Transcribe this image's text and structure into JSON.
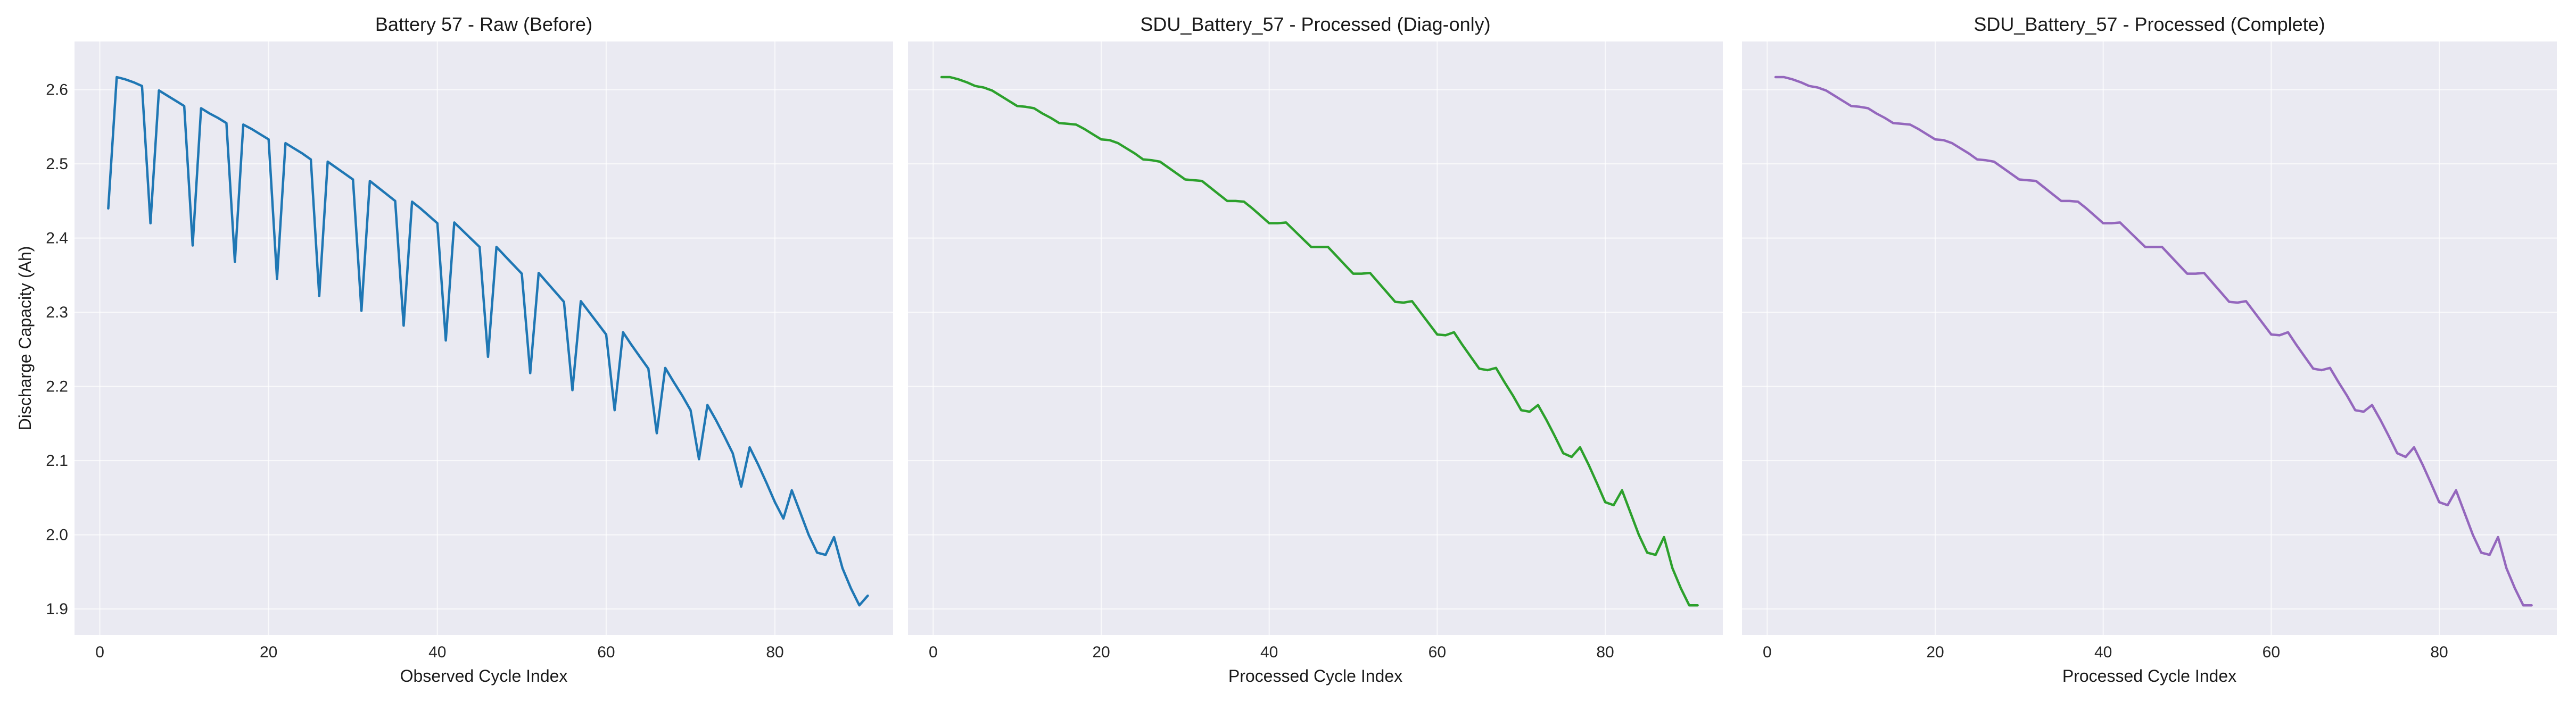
{
  "chart_data": [
    {
      "type": "line",
      "title": "Battery 57 - Raw (Before)",
      "xlabel": "Observed Cycle Index",
      "ylabel": "Discharge Capacity (Ah)",
      "xlim": [
        -3,
        94
      ],
      "ylim": [
        1.865,
        2.665
      ],
      "xticks": [
        0,
        20,
        40,
        60,
        80
      ],
      "yticks": [
        1.9,
        2.0,
        2.1,
        2.2,
        2.3,
        2.4,
        2.5,
        2.6
      ],
      "grid": true,
      "color": "#1f77b4",
      "series": [
        {
          "x": [
            1,
            2,
            3,
            4,
            5,
            6,
            7,
            8,
            9,
            10,
            11,
            12,
            13,
            14,
            15,
            16,
            17,
            18,
            19,
            20,
            21,
            22,
            23,
            24,
            25,
            26,
            27,
            28,
            29,
            30,
            31,
            32,
            33,
            34,
            35,
            36,
            37,
            38,
            39,
            40,
            41,
            42,
            43,
            44,
            45,
            46,
            47,
            48,
            49,
            50,
            51,
            52,
            53,
            54,
            55,
            56,
            57,
            58,
            59,
            60,
            61,
            62,
            63,
            64,
            65,
            66,
            67,
            68,
            69,
            70,
            71,
            72,
            73,
            74,
            75,
            76,
            77,
            78,
            79,
            80,
            81,
            82,
            83,
            84,
            85,
            86,
            87,
            88,
            89,
            90,
            91
          ],
          "y": [
            2.44,
            2.617,
            2.614,
            2.61,
            2.605,
            2.42,
            2.599,
            2.592,
            2.585,
            2.578,
            2.39,
            2.575,
            2.568,
            2.562,
            2.555,
            2.368,
            2.553,
            2.547,
            2.54,
            2.533,
            2.345,
            2.528,
            2.521,
            2.514,
            2.506,
            2.322,
            2.503,
            2.495,
            2.487,
            2.479,
            2.302,
            2.477,
            2.468,
            2.459,
            2.45,
            2.282,
            2.449,
            2.44,
            2.43,
            2.42,
            2.262,
            2.421,
            2.41,
            2.399,
            2.388,
            2.24,
            2.388,
            2.376,
            2.364,
            2.352,
            2.218,
            2.353,
            2.34,
            2.327,
            2.314,
            2.195,
            2.315,
            2.3,
            2.285,
            2.27,
            2.168,
            2.273,
            2.256,
            2.24,
            2.224,
            2.137,
            2.225,
            2.206,
            2.188,
            2.168,
            2.102,
            2.175,
            2.155,
            2.133,
            2.11,
            2.065,
            2.118,
            2.095,
            2.07,
            2.044,
            2.022,
            2.06,
            2.03,
            2.0,
            1.976,
            1.973,
            1.997,
            1.955,
            1.928,
            1.905,
            1.918
          ]
        }
      ]
    },
    {
      "type": "line",
      "title": "SDU_Battery_57 - Processed (Diag-only)",
      "xlabel": "Processed Cycle Index",
      "ylabel": "",
      "xlim": [
        -3,
        94
      ],
      "ylim": [
        1.865,
        2.665
      ],
      "xticks": [
        0,
        20,
        40,
        60,
        80
      ],
      "yticks": [
        1.9,
        2.0,
        2.1,
        2.2,
        2.3,
        2.4,
        2.5,
        2.6
      ],
      "grid": true,
      "color": "#2ca02c",
      "series": [
        {
          "x": [
            1,
            2,
            3,
            4,
            5,
            6,
            7,
            8,
            9,
            10,
            11,
            12,
            13,
            14,
            15,
            16,
            17,
            18,
            19,
            20,
            21,
            22,
            23,
            24,
            25,
            26,
            27,
            28,
            29,
            30,
            31,
            32,
            33,
            34,
            35,
            36,
            37,
            38,
            39,
            40,
            41,
            42,
            43,
            44,
            45,
            46,
            47,
            48,
            49,
            50,
            51,
            52,
            53,
            54,
            55,
            56,
            57,
            58,
            59,
            60,
            61,
            62,
            63,
            64,
            65,
            66,
            67,
            68,
            69,
            70,
            71,
            72,
            73,
            74,
            75,
            76,
            77,
            78,
            79,
            80,
            81,
            82,
            83,
            84,
            85,
            86,
            87,
            88,
            89,
            90,
            91
          ],
          "y": [
            2.617,
            2.617,
            2.614,
            2.61,
            2.605,
            2.603,
            2.599,
            2.592,
            2.585,
            2.578,
            2.577,
            2.575,
            2.568,
            2.562,
            2.555,
            2.554,
            2.553,
            2.547,
            2.54,
            2.533,
            2.532,
            2.528,
            2.521,
            2.514,
            2.506,
            2.505,
            2.503,
            2.495,
            2.487,
            2.479,
            2.478,
            2.477,
            2.468,
            2.459,
            2.45,
            2.45,
            2.449,
            2.44,
            2.43,
            2.42,
            2.42,
            2.421,
            2.41,
            2.399,
            2.388,
            2.388,
            2.388,
            2.376,
            2.364,
            2.352,
            2.352,
            2.353,
            2.34,
            2.327,
            2.314,
            2.313,
            2.315,
            2.3,
            2.285,
            2.27,
            2.269,
            2.273,
            2.256,
            2.24,
            2.224,
            2.222,
            2.225,
            2.206,
            2.188,
            2.168,
            2.166,
            2.175,
            2.155,
            2.133,
            2.11,
            2.105,
            2.118,
            2.095,
            2.07,
            2.044,
            2.04,
            2.06,
            2.03,
            2.0,
            1.976,
            1.973,
            1.997,
            1.955,
            1.928,
            1.905,
            1.905
          ]
        }
      ]
    },
    {
      "type": "line",
      "title": "SDU_Battery_57 - Processed (Complete)",
      "xlabel": "Processed Cycle Index",
      "ylabel": "",
      "xlim": [
        -3,
        94
      ],
      "ylim": [
        1.865,
        2.665
      ],
      "xticks": [
        0,
        20,
        40,
        60,
        80
      ],
      "yticks": [
        1.9,
        2.0,
        2.1,
        2.2,
        2.3,
        2.4,
        2.5,
        2.6
      ],
      "grid": true,
      "color": "#9467bd",
      "series": [
        {
          "x": [
            1,
            2,
            3,
            4,
            5,
            6,
            7,
            8,
            9,
            10,
            11,
            12,
            13,
            14,
            15,
            16,
            17,
            18,
            19,
            20,
            21,
            22,
            23,
            24,
            25,
            26,
            27,
            28,
            29,
            30,
            31,
            32,
            33,
            34,
            35,
            36,
            37,
            38,
            39,
            40,
            41,
            42,
            43,
            44,
            45,
            46,
            47,
            48,
            49,
            50,
            51,
            52,
            53,
            54,
            55,
            56,
            57,
            58,
            59,
            60,
            61,
            62,
            63,
            64,
            65,
            66,
            67,
            68,
            69,
            70,
            71,
            72,
            73,
            74,
            75,
            76,
            77,
            78,
            79,
            80,
            81,
            82,
            83,
            84,
            85,
            86,
            87,
            88,
            89,
            90,
            91
          ],
          "y": [
            2.617,
            2.617,
            2.614,
            2.61,
            2.605,
            2.603,
            2.599,
            2.592,
            2.585,
            2.578,
            2.577,
            2.575,
            2.568,
            2.562,
            2.555,
            2.554,
            2.553,
            2.547,
            2.54,
            2.533,
            2.532,
            2.528,
            2.521,
            2.514,
            2.506,
            2.505,
            2.503,
            2.495,
            2.487,
            2.479,
            2.478,
            2.477,
            2.468,
            2.459,
            2.45,
            2.45,
            2.449,
            2.44,
            2.43,
            2.42,
            2.42,
            2.421,
            2.41,
            2.399,
            2.388,
            2.388,
            2.388,
            2.376,
            2.364,
            2.352,
            2.352,
            2.353,
            2.34,
            2.327,
            2.314,
            2.313,
            2.315,
            2.3,
            2.285,
            2.27,
            2.269,
            2.273,
            2.256,
            2.24,
            2.224,
            2.222,
            2.225,
            2.206,
            2.188,
            2.168,
            2.166,
            2.175,
            2.155,
            2.133,
            2.11,
            2.105,
            2.118,
            2.095,
            2.07,
            2.044,
            2.04,
            2.06,
            2.03,
            2.0,
            1.976,
            1.973,
            1.997,
            1.955,
            1.928,
            1.905,
            1.905
          ]
        }
      ]
    }
  ]
}
